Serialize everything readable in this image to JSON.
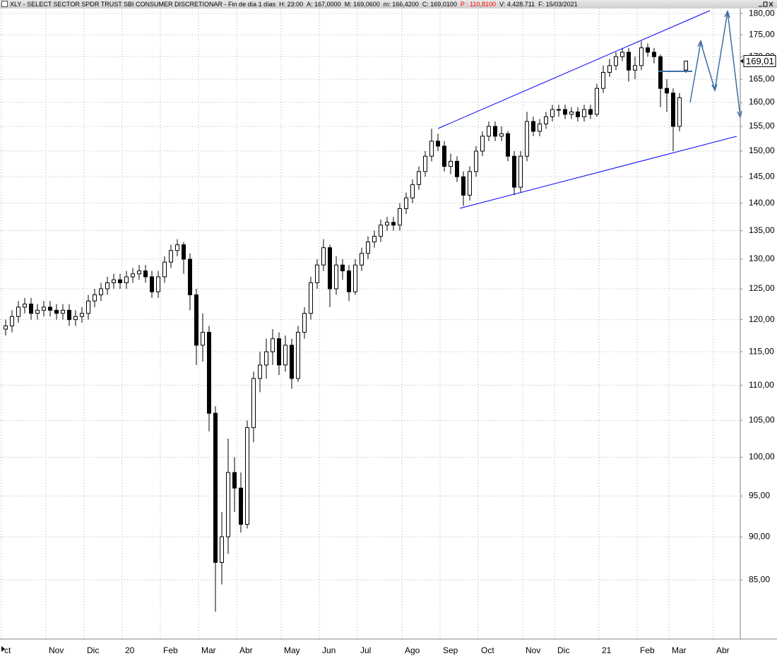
{
  "chart_data": {
    "type": "candlestick",
    "header": [
      {
        "text": "XLY - SELECT SECTOR SPDR TRUST SBI CONSUMER DISCRETIONAR - Fin de día 1 días",
        "color": "#000000"
      },
      {
        "text": "H: 23:00",
        "color": "#000000"
      },
      {
        "text": "A: 167,0000",
        "color": "#000000"
      },
      {
        "text": "M: 169,0600",
        "color": "#000000"
      },
      {
        "text": "m: 166,4200",
        "color": "#000000"
      },
      {
        "text": "C: 169,0100",
        "color": "#000000"
      },
      {
        "text": "P : 110,8100",
        "color": "#ff0000"
      },
      {
        "text": "V: 4.428.711",
        "color": "#000000"
      },
      {
        "text": "F: 15/03/2021",
        "color": "#000000"
      }
    ],
    "categories": [
      "ct",
      null,
      null,
      null,
      null,
      null,
      null,
      "Nov",
      null,
      null,
      null,
      null,
      null,
      "Dic",
      null,
      null,
      null,
      null,
      null,
      "20",
      null,
      null,
      null,
      null,
      null,
      "Feb",
      null,
      null,
      null,
      null,
      null,
      "Mar",
      null,
      null,
      null,
      null,
      null,
      "Abr",
      null,
      null,
      null,
      null,
      null,
      null,
      "May",
      null,
      null,
      null,
      null,
      null,
      "Jun",
      null,
      null,
      null,
      null,
      null,
      "Jul",
      null,
      null,
      null,
      null,
      null,
      null,
      "Ago",
      null,
      null,
      null,
      null,
      null,
      "Sep",
      null,
      null,
      null,
      null,
      null,
      "Oct",
      null,
      null,
      null,
      null,
      null,
      null,
      "Nov",
      null,
      null,
      null,
      null,
      "Dic",
      null,
      null,
      null,
      null,
      null,
      null,
      "21",
      null,
      null,
      null,
      null,
      null,
      "Feb",
      null,
      null,
      null,
      null,
      "Mar",
      null,
      null,
      null,
      null,
      null,
      null,
      "Abr",
      null,
      null,
      null
    ],
    "open": [
      118.5,
      119,
      120.5,
      122,
      122.5,
      121,
      121.5,
      122,
      121.5,
      121,
      121.5,
      120,
      120.5,
      121,
      123,
      124,
      125,
      126,
      126.5,
      126,
      127,
      127.5,
      128,
      127,
      124.5,
      127,
      129.5,
      131.5,
      132.5,
      130,
      124,
      116,
      118,
      106,
      87,
      90,
      98,
      96,
      91.5,
      104,
      111,
      113,
      115,
      117,
      113,
      116,
      111,
      118,
      121,
      126,
      129,
      132,
      125,
      129,
      128,
      124.5,
      129,
      131,
      133,
      134,
      136,
      136.5,
      136,
      139,
      141,
      143.5,
      146,
      149,
      152,
      151,
      147,
      148,
      145,
      141.5,
      146,
      150,
      153,
      155,
      153,
      153.5,
      149,
      143,
      149,
      156,
      154,
      155.5,
      157,
      158.5,
      158.5,
      157.5,
      158,
      157,
      158.5,
      157.5,
      163,
      166.5,
      168,
      170,
      171,
      167,
      168,
      172,
      171,
      170,
      163,
      162,
      155,
      167,
      null,
      null,
      null,
      null,
      null,
      null,
      null,
      null
    ],
    "high": [
      120,
      121.5,
      123,
      123.5,
      123.5,
      122.5,
      123,
      123,
      122.5,
      122.5,
      122.5,
      121.5,
      122,
      124,
      125,
      126,
      127,
      127.5,
      127.5,
      128,
      128.5,
      129,
      129,
      128,
      128,
      130.5,
      132.5,
      133.5,
      133,
      131,
      125,
      121,
      119,
      107,
      93,
      102.5,
      100,
      98,
      105,
      112,
      115,
      117,
      118.5,
      118,
      117.5,
      117,
      119,
      122,
      127,
      130,
      133.5,
      132.5,
      130.5,
      130,
      129,
      130,
      132,
      134,
      135,
      137,
      137.5,
      137.5,
      140,
      142,
      144.5,
      147,
      150,
      154.5,
      153.5,
      152,
      149.5,
      149,
      146,
      147,
      151,
      154,
      156,
      156,
      155,
      154,
      150,
      150,
      158,
      157,
      156.5,
      158,
      159.5,
      159.5,
      159.5,
      159,
      159,
      159.5,
      159.5,
      164,
      168,
      169.5,
      171,
      172,
      172,
      170,
      173.5,
      173,
      172,
      170.5,
      165,
      163,
      162,
      169.06,
      null,
      null,
      null,
      null,
      null,
      null,
      null,
      null
    ],
    "low": [
      117.5,
      118,
      119.5,
      121,
      120,
      120,
      120.5,
      120.5,
      120,
      120,
      119,
      119,
      119.5,
      120,
      122,
      123,
      124,
      125,
      125,
      125,
      126,
      126.5,
      126,
      123.5,
      123.5,
      126,
      128.5,
      130.5,
      127.5,
      121.5,
      113,
      113.5,
      103.5,
      81.5,
      84.5,
      88,
      93,
      90.5,
      91,
      102,
      109,
      111,
      113,
      111.5,
      112,
      109.5,
      110.5,
      117,
      120,
      125,
      128,
      122,
      124,
      126.5,
      123,
      124,
      128,
      130,
      132,
      133,
      135,
      135,
      135,
      138,
      140,
      142.5,
      145,
      148,
      150,
      146,
      145.5,
      144,
      139.5,
      140.5,
      145,
      149,
      152,
      152,
      152,
      148,
      141.5,
      142,
      148,
      153,
      153,
      154.5,
      156,
      157,
      156.5,
      156.5,
      156,
      156,
      156.5,
      157,
      162,
      165.5,
      167,
      169,
      164.5,
      165,
      167,
      170,
      168.5,
      159,
      158,
      150,
      154,
      166.42,
      null,
      null,
      null,
      null,
      null,
      null,
      null,
      null
    ],
    "close": [
      119,
      120.5,
      122,
      122.5,
      121,
      121.5,
      122,
      121.5,
      121,
      121.5,
      120,
      120.5,
      121,
      123,
      124,
      125,
      126,
      126.5,
      126,
      127,
      127.5,
      128,
      127,
      124.5,
      127,
      129.5,
      131.5,
      132.5,
      130,
      124,
      116,
      118,
      106,
      87,
      90,
      98,
      96,
      91.5,
      104,
      111,
      113,
      115,
      117,
      113,
      116,
      111,
      118,
      121,
      126,
      129,
      132,
      125,
      129,
      128,
      124.5,
      129,
      131,
      133,
      134,
      136,
      136.5,
      136,
      139,
      141,
      143.5,
      146,
      149,
      152,
      151,
      147,
      148,
      145,
      141.5,
      146,
      150,
      153,
      155,
      153,
      153.5,
      149,
      143,
      149,
      156,
      154,
      155.5,
      157,
      158.5,
      158.5,
      157.5,
      158,
      157,
      158.5,
      157.5,
      163,
      166.5,
      168,
      170,
      171,
      167,
      168,
      172,
      171,
      170,
      163,
      162,
      155,
      161,
      169.01,
      null,
      null,
      null,
      null,
      null,
      null,
      null,
      null
    ],
    "up_color": "#ffffff",
    "down_color": "#000000",
    "outline_color": "#000000",
    "log_scale": true,
    "grid": true,
    "ylim": [
      78.6,
      181.2
    ],
    "yticks": [
      {
        "value": 85,
        "label": "85,00"
      },
      {
        "value": 90,
        "label": "90,00"
      },
      {
        "value": 95,
        "label": "95,00"
      },
      {
        "value": 100,
        "label": "100,00"
      },
      {
        "value": 105,
        "label": "105,00"
      },
      {
        "value": 110,
        "label": "110,00"
      },
      {
        "value": 115,
        "label": "115,00"
      },
      {
        "value": 120,
        "label": "120,00"
      },
      {
        "value": 125,
        "label": "125,00"
      },
      {
        "value": 130,
        "label": "130,00"
      },
      {
        "value": 135,
        "label": "135,00"
      },
      {
        "value": 140,
        "label": "140,00"
      },
      {
        "value": 145,
        "label": "145,00"
      },
      {
        "value": 150,
        "label": "150,00"
      },
      {
        "value": 155,
        "label": "155,00"
      },
      {
        "value": 160,
        "label": "160,00"
      },
      {
        "value": 165,
        "label": "165,00"
      },
      {
        "value": 170,
        "label": "170,00"
      },
      {
        "value": 175,
        "label": "175,00"
      },
      {
        "value": 180,
        "label": "180,00"
      }
    ],
    "last_price": {
      "value": 169.01,
      "label": "169,01"
    }
  }
}
